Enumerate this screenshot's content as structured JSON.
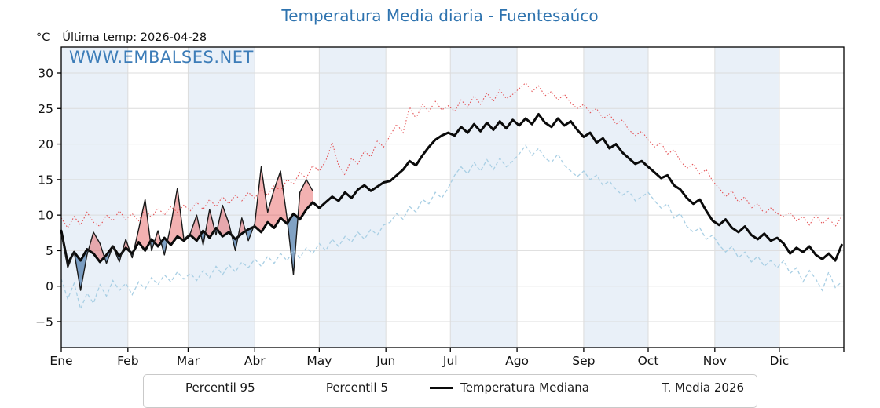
{
  "title": "Temperatura Media diaria - Fuentesaúco",
  "unit_label": "°C",
  "last_temp_label": "Última temp: 2026-04-28",
  "watermark": "WWW.EMBALSES.NET",
  "colors": {
    "title": "#2e73af",
    "watermark": "#3d7db8",
    "p95_line": "#e45053",
    "p5_line": "#a9cfe4",
    "median_line": "#0a0a0a",
    "t2026_line": "#1a1a1a",
    "fill_above": "rgba(225,60,60,0.40)",
    "fill_below": "rgba(52,105,160,0.62)",
    "month_band": "#e9f0f8",
    "grid": "#dcdcdc",
    "spine": "#000000"
  },
  "legend": {
    "items": [
      {
        "label": "Percentil 95",
        "style": "dotted-red"
      },
      {
        "label": "Percentil 5",
        "style": "dashed-lightblue"
      },
      {
        "label": "Temperatura Mediana",
        "style": "thick-black"
      },
      {
        "label": "T. Media 2026",
        "style": "thin-black"
      }
    ]
  },
  "chart_data": {
    "type": "line",
    "title": "Temperatura Media diaria - Fuentesaúco",
    "ylabel": "°C",
    "x_unit": "day_of_year",
    "day_start": 1,
    "day_step": 3,
    "months": [
      "Ene",
      "Feb",
      "Mar",
      "Abr",
      "May",
      "Jun",
      "Jul",
      "Ago",
      "Sep",
      "Oct",
      "Nov",
      "Dic"
    ],
    "month_start_days": [
      1,
      32,
      60,
      91,
      121,
      152,
      182,
      213,
      244,
      274,
      305,
      335
    ],
    "shaded_month_indices": [
      0,
      2,
      4,
      6,
      8,
      10
    ],
    "yticks": [
      -5,
      0,
      5,
      10,
      15,
      20,
      25,
      30
    ],
    "ylim": [
      -8.6,
      33.6
    ],
    "xlim_days": [
      1,
      365
    ],
    "grid": true,
    "legend_position": "bottom",
    "series": [
      {
        "name": "Percentil 95",
        "values": [
          9.6,
          8.2,
          9.8,
          8.6,
          10.4,
          9.0,
          8.4,
          10.0,
          9.2,
          10.6,
          9.4,
          10.2,
          9.2,
          10.8,
          9.6,
          11.0,
          10.0,
          11.2,
          10.4,
          11.4,
          10.6,
          11.8,
          10.8,
          12.2,
          11.2,
          12.6,
          11.6,
          12.8,
          12.0,
          13.2,
          12.4,
          13.6,
          12.8,
          14.2,
          13.4,
          15.0,
          14.4,
          16.0,
          15.2,
          17.0,
          16.2,
          17.6,
          20.2,
          17.0,
          15.6,
          18.0,
          17.2,
          19.0,
          18.2,
          20.4,
          19.6,
          21.2,
          22.8,
          21.6,
          25.2,
          23.6,
          25.6,
          24.6,
          26.0,
          24.8,
          25.4,
          24.6,
          26.2,
          25.2,
          26.8,
          25.6,
          27.2,
          26.0,
          27.6,
          26.4,
          27.0,
          27.8,
          28.6,
          27.4,
          28.2,
          26.8,
          27.4,
          26.2,
          27.0,
          25.8,
          25.0,
          25.6,
          24.4,
          25.0,
          23.6,
          24.2,
          22.8,
          23.4,
          22.0,
          21.2,
          21.8,
          20.6,
          19.6,
          20.2,
          18.6,
          19.2,
          17.6,
          16.6,
          17.2,
          15.8,
          16.4,
          14.8,
          13.8,
          12.6,
          13.4,
          11.8,
          12.6,
          11.0,
          11.6,
          10.2,
          11.0,
          10.2,
          9.8,
          10.4,
          9.2,
          9.8,
          8.6,
          10.0,
          8.8,
          9.6,
          8.4,
          9.8
        ]
      },
      {
        "name": "Percentil 5",
        "values": [
          1.0,
          -1.8,
          0.4,
          -3.2,
          -1.0,
          -2.4,
          0.2,
          -1.4,
          0.8,
          -0.6,
          0.4,
          -1.2,
          0.6,
          -0.4,
          1.2,
          0.2,
          1.6,
          0.6,
          2.0,
          1.0,
          1.8,
          0.8,
          2.2,
          1.2,
          2.8,
          1.6,
          3.0,
          2.0,
          3.4,
          2.6,
          3.8,
          2.8,
          4.2,
          3.2,
          4.6,
          3.6,
          5.0,
          4.0,
          5.4,
          4.6,
          6.0,
          5.0,
          6.6,
          5.6,
          7.0,
          6.2,
          7.6,
          6.6,
          8.0,
          7.2,
          8.6,
          9.0,
          10.2,
          9.4,
          11.2,
          10.4,
          12.2,
          11.6,
          13.2,
          12.4,
          13.8,
          15.6,
          16.8,
          15.8,
          17.4,
          16.2,
          17.8,
          16.4,
          18.0,
          16.8,
          17.6,
          18.6,
          19.8,
          18.4,
          19.4,
          18.0,
          17.4,
          18.6,
          17.0,
          16.2,
          15.4,
          16.2,
          15.0,
          15.6,
          14.2,
          14.8,
          13.6,
          12.8,
          13.4,
          12.0,
          12.6,
          13.2,
          12.0,
          11.0,
          11.6,
          9.6,
          10.2,
          8.4,
          7.6,
          8.2,
          6.6,
          7.2,
          5.8,
          4.8,
          5.6,
          4.0,
          4.8,
          3.4,
          4.2,
          2.8,
          3.6,
          2.6,
          3.6,
          1.8,
          2.6,
          0.6,
          2.2,
          1.0,
          -0.6,
          2.0,
          -0.2,
          0.6
        ]
      },
      {
        "name": "Temperatura Mediana",
        "values": [
          7.8,
          3.2,
          4.8,
          3.6,
          5.2,
          4.6,
          3.4,
          4.4,
          5.6,
          4.2,
          5.4,
          4.6,
          6.2,
          5.0,
          6.6,
          5.6,
          6.8,
          5.8,
          7.0,
          6.4,
          7.2,
          6.4,
          7.8,
          6.8,
          8.2,
          7.0,
          7.6,
          6.6,
          7.4,
          8.0,
          8.4,
          7.6,
          9.0,
          8.2,
          9.6,
          8.8,
          10.2,
          9.4,
          10.8,
          11.8,
          11.0,
          11.8,
          12.6,
          12.0,
          13.2,
          12.4,
          13.6,
          14.2,
          13.4,
          14.0,
          14.6,
          14.8,
          15.6,
          16.4,
          17.6,
          17.0,
          18.4,
          19.6,
          20.6,
          21.2,
          21.6,
          21.2,
          22.4,
          21.6,
          22.8,
          21.8,
          23.0,
          22.0,
          23.2,
          22.2,
          23.4,
          22.6,
          23.6,
          22.8,
          24.2,
          23.0,
          22.4,
          23.6,
          22.6,
          23.2,
          22.0,
          21.0,
          21.6,
          20.2,
          20.8,
          19.4,
          20.0,
          18.8,
          18.0,
          17.2,
          17.6,
          16.8,
          16.0,
          15.2,
          15.6,
          14.2,
          13.6,
          12.4,
          11.6,
          12.2,
          10.6,
          9.2,
          8.6,
          9.4,
          8.2,
          7.6,
          8.4,
          7.2,
          6.6,
          7.4,
          6.4,
          6.8,
          6.0,
          4.6,
          5.4,
          4.8,
          5.6,
          4.4,
          3.8,
          4.6,
          3.6,
          5.8
        ]
      },
      {
        "name": "T. Media 2026",
        "last_day": 118,
        "values": [
          7.5,
          2.6,
          4.8,
          -0.6,
          4.4,
          7.6,
          6.0,
          3.2,
          5.6,
          3.4,
          6.6,
          4.0,
          8.0,
          12.2,
          5.0,
          7.8,
          4.4,
          8.6,
          13.8,
          6.6,
          7.4,
          10.0,
          5.8,
          10.8,
          7.2,
          11.4,
          8.8,
          5.0,
          9.6,
          6.4,
          8.8,
          16.8,
          10.4,
          13.6,
          16.2,
          9.6,
          1.6,
          13.2,
          15.0,
          13.4
        ]
      }
    ]
  }
}
